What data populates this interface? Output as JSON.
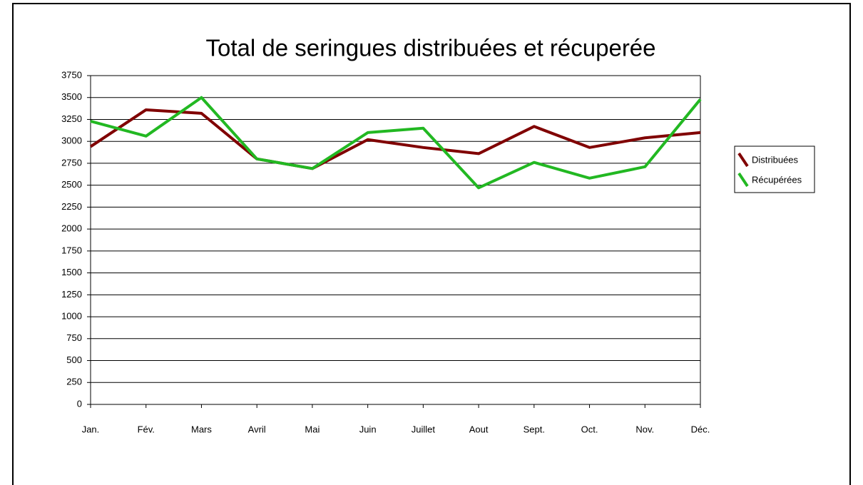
{
  "chart_data": {
    "type": "line",
    "title": "Total de seringues distribuées et récuperée",
    "categories": [
      "Jan.",
      "Fév.",
      "Mars",
      "Avril",
      "Mai",
      "Juin",
      "Juillet",
      "Aout",
      "Sept.",
      "Oct.",
      "Nov.",
      "Déc."
    ],
    "series": [
      {
        "name": "Distribuées",
        "color": "#800000",
        "values": [
          2940,
          3360,
          3320,
          2800,
          2690,
          3020,
          2930,
          2860,
          3170,
          2930,
          3040,
          3100
        ]
      },
      {
        "name": "Récupérées",
        "color": "#22b822",
        "values": [
          3230,
          3060,
          3500,
          2800,
          2690,
          3100,
          3150,
          2470,
          2760,
          2580,
          2710,
          3480
        ]
      }
    ],
    "ylim": [
      0,
      3750
    ],
    "yticks": [
      0,
      250,
      500,
      750,
      1000,
      1250,
      1500,
      1750,
      2000,
      2250,
      2500,
      2750,
      3000,
      3250,
      3500,
      3750
    ],
    "grid": true,
    "legend": "right"
  }
}
